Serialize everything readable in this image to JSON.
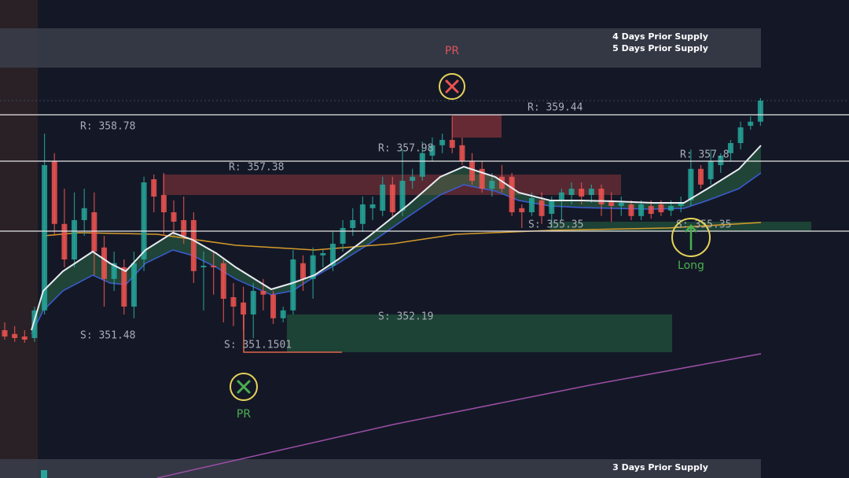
{
  "chart_data": {
    "type": "candlestick",
    "ylim": [
      347.5,
      362.7
    ],
    "up_color": "#26a69a",
    "down_color": "#ef5350",
    "open": [
      352.2,
      352.08,
      352.0,
      351.95,
      352.83,
      357.58,
      355.58,
      354.45,
      355.7,
      355.95,
      354.83,
      353.83,
      354.2,
      352.95,
      354.45,
      357.0,
      356.5,
      355.95,
      355.7,
      355.7,
      354.2,
      354.25,
      354.33,
      353.25,
      353.08,
      352.7,
      353.45,
      353.33,
      352.58,
      352.83,
      354.33,
      353.83,
      354.58,
      354.25,
      354.95,
      355.45,
      355.58,
      356.08,
      356.0,
      356.83,
      356.0,
      356.95,
      357.08,
      357.75,
      358.08,
      358.25,
      358.08,
      357.58,
      357.33,
      356.7,
      357.08,
      357.08,
      356.08,
      355.95,
      356.33,
      355.9,
      356.33,
      356.5,
      356.7,
      356.5,
      356.7,
      356.33,
      356.15,
      356.2,
      355.83,
      356.15,
      356.2,
      356.0,
      356.15,
      356.33,
      357.33,
      357.0,
      357.45,
      357.83,
      358.15,
      358.7,
      358.83
    ],
    "high": [
      352.45,
      352.33,
      352.2,
      352.95,
      358.45,
      357.83,
      356.7,
      356.58,
      356.7,
      356.58,
      355.2,
      354.7,
      354.45,
      354.7,
      357.08,
      357.15,
      357.2,
      356.33,
      356.45,
      355.95,
      354.7,
      354.7,
      354.45,
      353.7,
      353.58,
      353.7,
      353.83,
      353.45,
      352.95,
      354.75,
      354.58,
      354.83,
      354.75,
      355.33,
      355.7,
      356.08,
      356.45,
      356.45,
      357.08,
      357.08,
      357.95,
      357.33,
      358.2,
      358.33,
      358.45,
      359.0,
      358.33,
      357.83,
      357.58,
      357.2,
      357.45,
      357.2,
      356.2,
      356.58,
      356.58,
      356.45,
      356.7,
      356.9,
      356.9,
      356.83,
      356.83,
      356.58,
      356.45,
      356.33,
      356.33,
      356.33,
      356.33,
      356.33,
      356.45,
      357.95,
      357.45,
      357.95,
      357.83,
      358.25,
      358.83,
      359.0,
      359.58
    ],
    "low": [
      351.9,
      351.83,
      351.8,
      351.83,
      352.7,
      355.2,
      354.2,
      354.2,
      355.2,
      353.95,
      352.95,
      353.45,
      352.7,
      352.58,
      354.08,
      355.95,
      355.2,
      355.2,
      354.95,
      353.7,
      352.83,
      353.33,
      352.45,
      352.33,
      352.2,
      351.95,
      352.83,
      352.4,
      352.45,
      352.7,
      353.45,
      353.2,
      354.2,
      354.08,
      354.7,
      355.2,
      355.33,
      355.7,
      355.83,
      355.83,
      355.83,
      356.7,
      356.95,
      357.58,
      357.83,
      357.83,
      357.45,
      356.83,
      356.58,
      356.45,
      356.58,
      355.83,
      355.45,
      355.83,
      355.58,
      355.45,
      355.7,
      356.2,
      356.2,
      356.25,
      355.83,
      355.65,
      355.83,
      355.7,
      355.7,
      355.75,
      355.83,
      355.83,
      355.95,
      356.15,
      356.7,
      356.83,
      357.2,
      357.58,
      357.95,
      358.58,
      358.7
    ],
    "close": [
      352.0,
      351.95,
      351.9,
      352.83,
      357.45,
      355.58,
      354.45,
      355.7,
      356.08,
      354.7,
      353.83,
      354.33,
      352.95,
      354.33,
      356.9,
      356.45,
      355.95,
      355.65,
      355.2,
      354.08,
      354.25,
      354.2,
      353.2,
      352.95,
      352.7,
      353.45,
      353.33,
      352.58,
      352.83,
      354.45,
      353.83,
      354.58,
      354.65,
      354.95,
      355.45,
      355.7,
      356.2,
      356.2,
      356.83,
      355.95,
      356.95,
      357.08,
      357.83,
      358.08,
      358.25,
      358.0,
      357.58,
      356.95,
      356.7,
      356.95,
      356.7,
      355.95,
      355.95,
      356.4,
      355.83,
      356.33,
      356.58,
      356.7,
      356.45,
      356.7,
      356.2,
      356.15,
      356.25,
      355.83,
      356.2,
      355.9,
      355.95,
      356.15,
      356.25,
      357.33,
      356.83,
      357.58,
      357.75,
      358.15,
      358.65,
      358.83,
      359.5
    ],
    "labels": {
      "top_supply": [
        "4 Days Prior Supply",
        "5 Days Prior Supply"
      ],
      "bottom_supply": "3 Days Prior Supply",
      "top_marker": "PR",
      "bottom_marker": "PR",
      "long": "Long",
      "resistance": [
        "R: 359.44",
        "R: 358.78",
        "R: 357.98",
        "R: 357.38",
        "R: 357.8"
      ],
      "support": [
        "S: 355.35",
        "S: 355.35",
        "S: 352.19",
        "S: 351.48",
        "S: 351.1501"
      ]
    }
  }
}
